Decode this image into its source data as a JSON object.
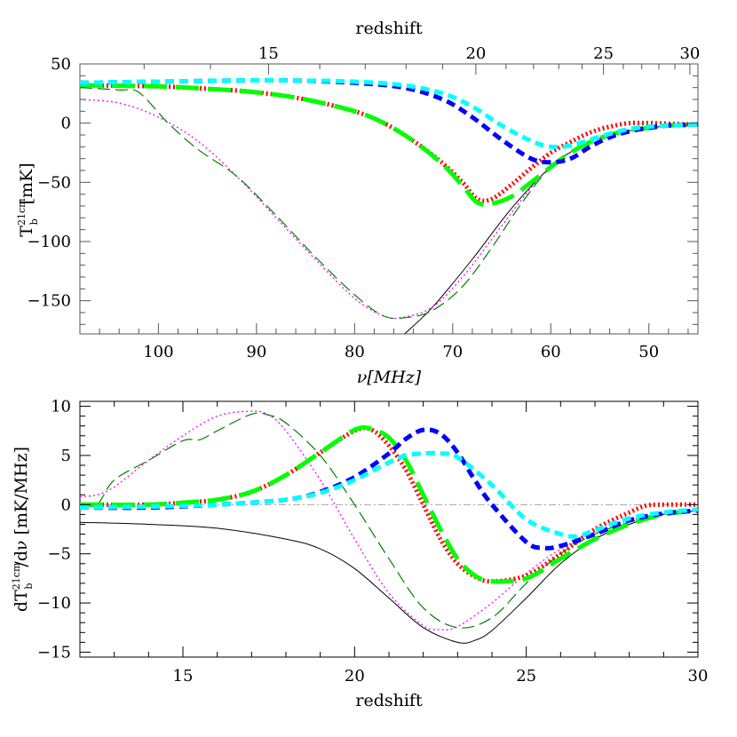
{
  "chart_data": [
    {
      "type": "line",
      "panel": "top",
      "xlabel": "ν[MHz]",
      "x2label": "redshift",
      "ylabel": "T_b^21cm [mK]",
      "ylabel_main": "T",
      "ylabel_sub": "b",
      "ylabel_sup": "21cm",
      "ylabel_unit": "[mK]",
      "xlim": [
        108,
        45
      ],
      "ylim": [
        -178,
        50
      ],
      "x_ticks": [
        100,
        90,
        80,
        70,
        60,
        50
      ],
      "x_tick_labels": [
        "100",
        "90",
        "80",
        "70",
        "60",
        "50"
      ],
      "x2_ticks": [
        15,
        20,
        25,
        30
      ],
      "x2_tick_labels": [
        "15",
        "20",
        "25",
        "30"
      ],
      "y_ticks": [
        50,
        0,
        -50,
        -100,
        -150
      ],
      "y_tick_labels": [
        "50",
        "0",
        "−50",
        "−100",
        "−150"
      ],
      "series": [
        {
          "color": "#000000",
          "dash": "",
          "width": 1,
          "x": [
            74.9,
            72,
            68,
            64,
            60,
            57,
            54,
            50,
            46,
            45
          ],
          "y": [
            -178,
            -155,
            -115,
            -72,
            -37,
            -20,
            -10,
            -4,
            -1.5,
            -1
          ]
        },
        {
          "color": "#ff00ff",
          "dash": "2 3",
          "width": 1.3,
          "x": [
            108,
            104,
            100,
            96,
            92,
            88,
            84,
            80,
            77,
            75,
            72,
            69,
            66,
            63,
            60,
            57,
            54,
            50,
            46,
            45
          ],
          "y": [
            20,
            17,
            5,
            -15,
            -45,
            -80,
            -115,
            -148,
            -163,
            -164,
            -155,
            -130,
            -98,
            -65,
            -36,
            -20,
            -10,
            -4,
            -1.5,
            -1
          ]
        },
        {
          "color": "#008000",
          "dash": "14 6",
          "width": 1.2,
          "x": [
            108,
            104,
            102,
            99,
            96,
            92,
            88,
            84,
            80,
            77,
            74.5,
            72,
            69,
            66,
            63,
            60,
            57,
            54,
            50,
            46,
            45
          ],
          "y": [
            30,
            28,
            26,
            0,
            -22,
            -45,
            -78,
            -113,
            -145,
            -163,
            -164,
            -158,
            -138,
            -105,
            -68,
            -37,
            -20,
            -10,
            -4,
            -1.5,
            -1
          ]
        },
        {
          "color": "#ff0000",
          "dash": "2 3",
          "width": 5,
          "x": [
            108,
            100,
            95,
            90,
            85,
            80,
            77,
            74,
            71,
            69,
            67.5,
            66,
            64,
            62,
            60,
            58,
            56,
            54,
            52,
            50,
            48,
            46,
            45
          ],
          "y": [
            32,
            31,
            29,
            26,
            20,
            10,
            0,
            -15,
            -34,
            -50,
            -64,
            -64,
            -52,
            -38,
            -25,
            -16,
            -8,
            -3,
            0,
            0,
            -0.5,
            -1,
            -1
          ]
        },
        {
          "color": "#00ff00",
          "dash": "26 10",
          "width": 5,
          "x": [
            108,
            100,
            95,
            90,
            85,
            80,
            77,
            74,
            71,
            69,
            67.5,
            66,
            64,
            62,
            60,
            58,
            56,
            54,
            52,
            50,
            48,
            46,
            45
          ],
          "y": [
            32,
            31,
            29,
            26,
            20,
            10,
            0,
            -15,
            -35,
            -53,
            -67,
            -68,
            -62,
            -50,
            -37,
            -25,
            -16,
            -10,
            -6,
            -4,
            -2,
            -1.5,
            -1
          ]
        },
        {
          "color": "#0000ff",
          "dash": "10 6",
          "width": 5,
          "x": [
            108,
            100,
            92,
            86,
            80,
            75,
            71,
            68,
            65,
            62,
            60,
            58,
            56,
            54,
            52,
            50,
            48,
            46,
            45
          ],
          "y": [
            34,
            35,
            36,
            36,
            34,
            30,
            20,
            5,
            -14,
            -30,
            -33,
            -30,
            -20,
            -12,
            -7,
            -4,
            -2,
            -1.5,
            -1
          ]
        },
        {
          "color": "#00ffff",
          "dash": "10 6",
          "width": 5,
          "x": [
            108,
            100,
            92,
            86,
            80,
            75,
            71,
            68,
            65,
            62,
            60,
            58,
            56,
            54,
            52,
            50,
            48,
            46,
            45
          ],
          "y": [
            34,
            35,
            36,
            36,
            35,
            32,
            25,
            14,
            -2,
            -15,
            -20,
            -19,
            -14,
            -9,
            -5,
            -3,
            -2,
            -1.5,
            -1
          ]
        }
      ]
    },
    {
      "type": "line",
      "panel": "bottom",
      "xlabel": "redshift",
      "ylabel": "dT_b^21cm/dν [mK/MHz]",
      "ylabel_main": "dT",
      "ylabel_sub": "b",
      "ylabel_sup": "21cm",
      "ylabel_rest": "/dν [mK/MHz]",
      "xlim": [
        12,
        30
      ],
      "ylim": [
        -15.5,
        10.5
      ],
      "x_ticks": [
        15,
        20,
        25,
        30
      ],
      "x_tick_labels": [
        "15",
        "20",
        "25",
        "30"
      ],
      "y_ticks": [
        10,
        5,
        0,
        -5,
        -10,
        -15
      ],
      "y_tick_labels": [
        "10",
        "5",
        "0",
        "−5",
        "−10",
        "−15"
      ],
      "zero_line": true,
      "series": [
        {
          "color": "#000000",
          "dash": "",
          "width": 1,
          "x": [
            12,
            14,
            16,
            18,
            19,
            20,
            21,
            22,
            23,
            23.5,
            24,
            25,
            26,
            27,
            28,
            29,
            30
          ],
          "y": [
            -1.8,
            -2,
            -2.4,
            -3.5,
            -4.5,
            -6.5,
            -9.5,
            -12.5,
            -14,
            -13.8,
            -12.8,
            -9.5,
            -6,
            -3.5,
            -2,
            -1,
            -0.6
          ]
        },
        {
          "color": "#ff00ff",
          "dash": "2 3",
          "width": 1.3,
          "x": [
            12,
            12.5,
            13,
            14,
            15,
            16,
            17,
            17.5,
            18,
            19,
            20,
            21,
            22,
            22.5,
            23,
            24,
            25,
            26,
            27,
            28,
            29,
            30
          ],
          "y": [
            0.8,
            1,
            1.8,
            4.5,
            7,
            9,
            9.5,
            9.1,
            7.5,
            2.5,
            -3.5,
            -9,
            -12.3,
            -12.7,
            -12.4,
            -10,
            -7,
            -4.5,
            -2.8,
            -1.6,
            -0.9,
            -0.6
          ]
        },
        {
          "color": "#008000",
          "dash": "14 6",
          "width": 1.2,
          "x": [
            12,
            12.5,
            13,
            14,
            15,
            15.5,
            16,
            17,
            17.5,
            18,
            19,
            20,
            21,
            22,
            23,
            24,
            25,
            26,
            27,
            28,
            29,
            30
          ],
          "y": [
            0,
            0,
            2.5,
            4.5,
            6.5,
            6.6,
            7.5,
            9.2,
            9.1,
            8.3,
            5,
            0,
            -5.5,
            -10.5,
            -12.5,
            -11.5,
            -8,
            -5,
            -3,
            -1.8,
            -1,
            -0.6
          ]
        },
        {
          "color": "#ff0000",
          "dash": "2 3",
          "width": 5,
          "x": [
            12,
            14,
            15,
            16,
            17,
            18,
            19,
            20,
            20.5,
            21,
            21.5,
            22,
            22.5,
            23,
            23.5,
            24,
            25,
            26,
            27,
            28,
            28.5,
            29,
            30
          ],
          "y": [
            0,
            0,
            0.2,
            0.5,
            1.3,
            3,
            5.3,
            7.5,
            7.6,
            6,
            3.5,
            0,
            -3.5,
            -6,
            -7.3,
            -7.8,
            -7.2,
            -5,
            -2.5,
            -0.8,
            -0.1,
            0,
            0
          ]
        },
        {
          "color": "#00ff00",
          "dash": "26 10",
          "width": 5,
          "x": [
            12,
            14,
            15,
            16,
            17,
            18,
            19,
            20,
            20.5,
            21,
            21.5,
            22,
            22.5,
            23,
            23.5,
            24,
            25,
            26,
            27,
            28,
            29,
            30
          ],
          "y": [
            0,
            0,
            0.2,
            0.5,
            1.3,
            3,
            5.3,
            7.6,
            7.7,
            6.8,
            4.5,
            1,
            -2.5,
            -5.5,
            -7.2,
            -7.8,
            -7.5,
            -5.5,
            -3.5,
            -2,
            -1,
            -0.6
          ]
        },
        {
          "color": "#0000ff",
          "dash": "10 6",
          "width": 5,
          "x": [
            12,
            14,
            16,
            18,
            19,
            20,
            21,
            21.5,
            22,
            22.5,
            23,
            23.5,
            24,
            25,
            25.5,
            26,
            27,
            28,
            29,
            30
          ],
          "y": [
            -0.3,
            -0.3,
            0,
            0.5,
            1.3,
            2.8,
            5.2,
            6.7,
            7.6,
            7.2,
            5.3,
            2.5,
            0,
            -3.8,
            -4.4,
            -4.2,
            -3,
            -1.6,
            -0.9,
            -0.6
          ]
        },
        {
          "color": "#00ffff",
          "dash": "10 6",
          "width": 5,
          "x": [
            12,
            14,
            16,
            18,
            19,
            20,
            21,
            21.5,
            22,
            22.5,
            23,
            24,
            25,
            26,
            26.5,
            27,
            28,
            29,
            30
          ],
          "y": [
            -0.3,
            -0.2,
            0,
            0.5,
            1.2,
            2.5,
            4.3,
            5,
            5.2,
            5.2,
            4.8,
            2,
            -1.5,
            -3,
            -3.2,
            -2.6,
            -1.4,
            -0.8,
            -0.5
          ]
        }
      ]
    }
  ]
}
